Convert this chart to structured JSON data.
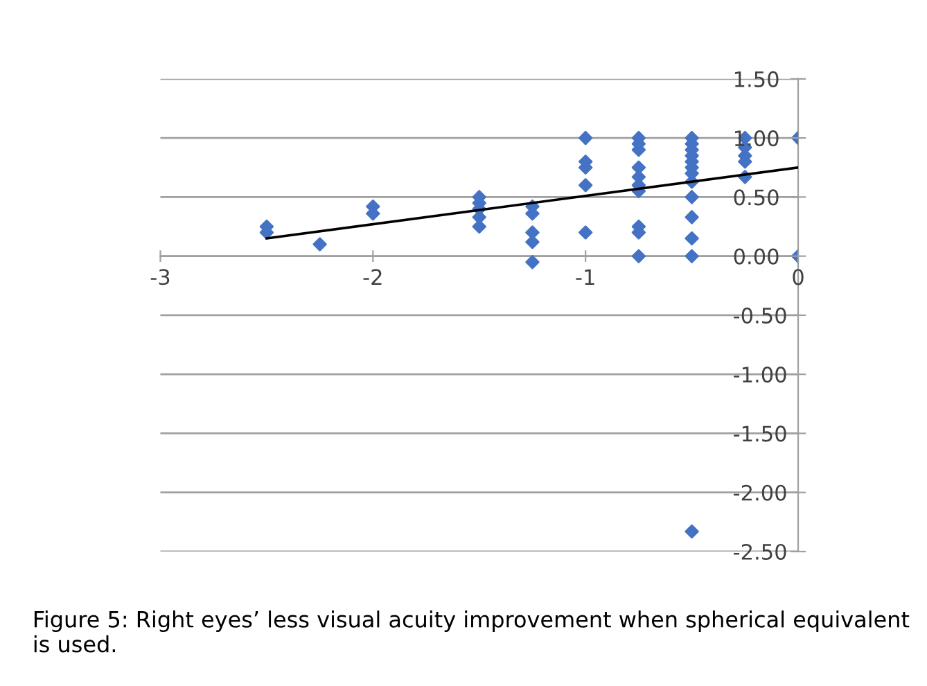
{
  "chart_data": {
    "type": "scatter",
    "xlim": [
      -3,
      0
    ],
    "ylim": [
      -2.5,
      1.5
    ],
    "xticks": [
      -3,
      -2,
      -1,
      0
    ],
    "yticks": [
      {
        "value": -2.5,
        "label": "-2.50"
      },
      {
        "value": -2,
        "label": "-2.00"
      },
      {
        "value": -1.5,
        "label": "-1.50"
      },
      {
        "value": -1,
        "label": "-1.00"
      },
      {
        "value": -0.5,
        "label": "-0.50"
      },
      {
        "value": 0,
        "label": "0.00"
      },
      {
        "value": 0.5,
        "label": "0.50"
      },
      {
        "value": 1,
        "label": "1.00"
      },
      {
        "value": 1.5,
        "label": "1.50"
      }
    ],
    "grid": "y",
    "legend": false,
    "series": [
      {
        "color": "#4472c4",
        "marker": "diamond",
        "x": [
          -2.5,
          -2.5,
          -2.25,
          -2,
          -2,
          -1.5,
          -1.5,
          -1.5,
          -1.5,
          -1.5,
          -1.25,
          -1.25,
          -1.25,
          -1.25,
          -1.25,
          -1,
          -1,
          -1,
          -1,
          -1,
          -0.75,
          -0.75,
          -0.75,
          -0.75,
          -0.75,
          -0.75,
          -0.75,
          -0.75,
          -0.75,
          -0.75,
          -0.5,
          -0.5,
          -0.5,
          -0.5,
          -0.5,
          -0.5,
          -0.5,
          -0.5,
          -0.5,
          -0.5,
          -0.5,
          -0.5,
          -0.5,
          -0.25,
          -0.25,
          -0.25,
          -0.25,
          -0.25,
          0,
          0
        ],
        "values": [
          0.25,
          0.2,
          0.1,
          0.42,
          0.36,
          0.5,
          0.45,
          0.4,
          0.33,
          0.25,
          0.42,
          0.36,
          0.2,
          0.12,
          -0.05,
          1.0,
          0.8,
          0.75,
          0.6,
          0.2,
          1.0,
          0.95,
          0.9,
          0.75,
          0.67,
          0.6,
          0.55,
          0.25,
          0.2,
          0.0,
          1.0,
          0.95,
          0.9,
          0.85,
          0.8,
          0.75,
          0.7,
          0.63,
          0.5,
          0.33,
          0.15,
          0.0,
          -2.33,
          1.0,
          0.92,
          0.85,
          0.8,
          0.67,
          1.0,
          0.0
        ]
      },
      {
        "type": "line",
        "color": "#000000",
        "x": [
          -2.5,
          0
        ],
        "values": [
          0.15,
          0.75
        ]
      }
    ],
    "annotations": [
      "Figure 5: Right eyes’ less visual acuity improvement when spherical equivalent is used."
    ]
  }
}
